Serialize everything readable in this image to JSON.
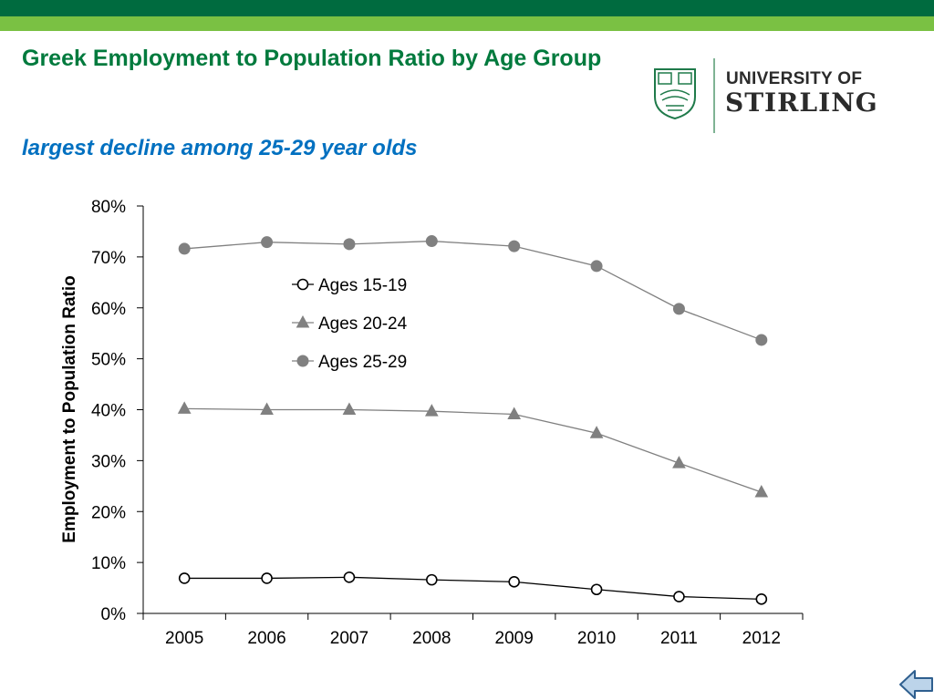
{
  "header": {
    "title": "Greek Employment to Population Ratio by Age Group",
    "subtitle": "largest decline among 25-29 year olds"
  },
  "logo": {
    "line1": "UNIVERSITY OF",
    "line2": "STIRLING"
  },
  "colors": {
    "band_dark": "#006b3f",
    "band_light": "#7ac143",
    "title": "#007a3d",
    "subtitle": "#0070c0",
    "series_line_dark": "#000000",
    "series_gray": "#808080"
  },
  "navigation": {
    "back_icon": "back-arrow-icon"
  },
  "chart_data": {
    "type": "line",
    "title": "",
    "xlabel": "",
    "ylabel": "Employment to Population Ratio",
    "x": [
      "2005",
      "2006",
      "2007",
      "2008",
      "2009",
      "2010",
      "2011",
      "2012"
    ],
    "ylim": [
      0,
      0.8
    ],
    "yticks": [
      "0%",
      "10%",
      "20%",
      "30%",
      "40%",
      "50%",
      "60%",
      "70%",
      "80%"
    ],
    "legend_position": "top-center",
    "grid": false,
    "series": [
      {
        "name": "Ages 15-19",
        "marker": "circle-open",
        "values": [
          0.069,
          0.069,
          0.071,
          0.066,
          0.062,
          0.047,
          0.033,
          0.028
        ]
      },
      {
        "name": "Ages 20-24",
        "marker": "triangle",
        "values": [
          0.402,
          0.4,
          0.4,
          0.397,
          0.391,
          0.354,
          0.295,
          0.238
        ]
      },
      {
        "name": "Ages 25-29",
        "marker": "circle-filled",
        "values": [
          0.716,
          0.729,
          0.725,
          0.731,
          0.721,
          0.682,
          0.598,
          0.537
        ]
      }
    ]
  }
}
